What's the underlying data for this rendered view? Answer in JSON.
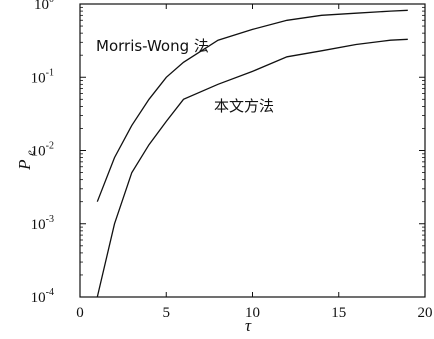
{
  "chart_data": {
    "type": "line",
    "title": "",
    "xlabel": "τ",
    "ylabel": "P",
    "ylabel_subscript": "e",
    "xlim": [
      0,
      20
    ],
    "ylim": [
      0.0001,
      1
    ],
    "yscale": "log",
    "grid": false,
    "x_ticks": [
      "0",
      "5",
      "10",
      "15",
      "20"
    ],
    "y_ticks": [
      {
        "base": "10",
        "exp": "-4",
        "value": 0.0001
      },
      {
        "base": "10",
        "exp": "-3",
        "value": 0.001
      },
      {
        "base": "10",
        "exp": "-2",
        "value": 0.01
      },
      {
        "base": "10",
        "exp": "-1",
        "value": 0.1
      },
      {
        "base": "10",
        "exp": "0",
        "value": 1
      }
    ],
    "annotations": [
      "Morris-Wong 法",
      "本文方法"
    ],
    "series": [
      {
        "name": "Morris-Wong 法",
        "x": [
          1,
          2,
          3,
          4,
          5,
          6,
          8,
          10,
          12,
          14,
          16,
          18,
          19
        ],
        "y": [
          0.002,
          0.008,
          0.022,
          0.05,
          0.1,
          0.16,
          0.32,
          0.45,
          0.6,
          0.7,
          0.75,
          0.8,
          0.82
        ]
      },
      {
        "name": "本文方法",
        "x": [
          1,
          2,
          3,
          4,
          5,
          6,
          8,
          10,
          12,
          14,
          16,
          18,
          19
        ],
        "y": [
          9e-05,
          0.001,
          0.005,
          0.012,
          0.025,
          0.05,
          0.08,
          0.12,
          0.19,
          0.23,
          0.28,
          0.32,
          0.33
        ]
      }
    ]
  }
}
